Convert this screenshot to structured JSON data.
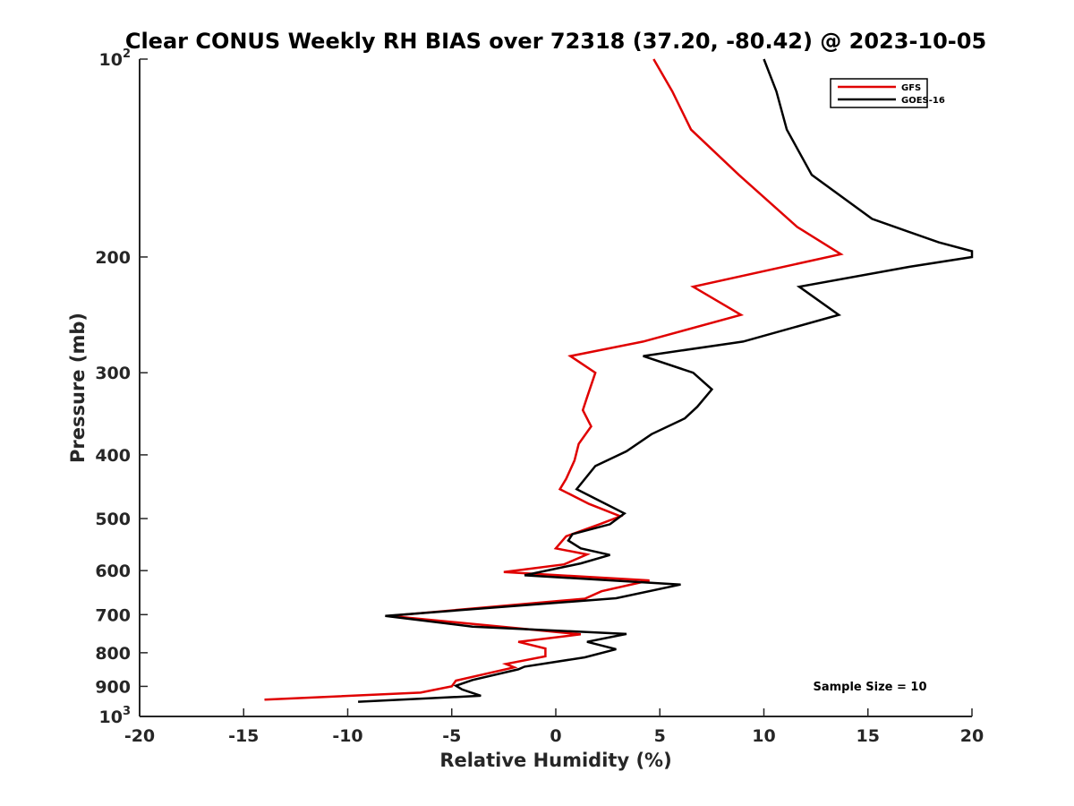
{
  "chart_data": {
    "type": "line",
    "title": "Clear CONUS Weekly RH BIAS over 72318 (37.20, -80.42) @ 2023-10-05",
    "xlabel": "Relative Humidity (%)",
    "ylabel": "Pressure (mb)",
    "xlim": [
      -20,
      20
    ],
    "ylim": [
      100,
      1000
    ],
    "yscale": "log",
    "y_reversed": true,
    "grid": false,
    "legend_position": "top-right",
    "x_ticks": [
      -20,
      -15,
      -10,
      -5,
      0,
      5,
      10,
      15,
      20
    ],
    "x_tick_labels": [
      "-20",
      "-15",
      "-10",
      "-5",
      "0",
      "5",
      "10",
      "15",
      "20"
    ],
    "y_ticks": [
      100,
      200,
      300,
      400,
      500,
      600,
      700,
      800,
      900,
      1000
    ],
    "y_tick_labels": [
      "10^2",
      "200",
      "300",
      "400",
      "500",
      "600",
      "700",
      "800",
      "900",
      "10^3"
    ],
    "annotation": "Sample Size = 10",
    "series": [
      {
        "name": "GFS",
        "color": "#e00000",
        "points": [
          [
            4.7,
            100
          ],
          [
            5.6,
            112
          ],
          [
            6.5,
            128
          ],
          [
            8.8,
            150
          ],
          [
            11.6,
            180
          ],
          [
            13.7,
            198
          ],
          [
            6.6,
            222
          ],
          [
            8.9,
            245
          ],
          [
            4.2,
            269
          ],
          [
            0.7,
            283
          ],
          [
            1.9,
            300
          ],
          [
            1.5,
            327
          ],
          [
            1.3,
            342
          ],
          [
            1.7,
            362
          ],
          [
            1.1,
            385
          ],
          [
            0.9,
            408
          ],
          [
            0.5,
            435
          ],
          [
            0.2,
            451
          ],
          [
            1.6,
            475
          ],
          [
            3.1,
            496
          ],
          [
            2.1,
            510
          ],
          [
            0.5,
            532
          ],
          [
            0.0,
            555
          ],
          [
            1.5,
            567
          ],
          [
            0.4,
            587
          ],
          [
            -2.5,
            603
          ],
          [
            4.5,
            621
          ],
          [
            2.2,
            645
          ],
          [
            1.4,
            662
          ],
          [
            -8.0,
            703
          ],
          [
            1.2,
            750
          ],
          [
            -1.8,
            770
          ],
          [
            -0.5,
            788
          ],
          [
            -0.5,
            810
          ],
          [
            -2.4,
            832
          ],
          [
            -2.0,
            842
          ],
          [
            -4.8,
            882
          ],
          [
            -5.0,
            900
          ],
          [
            -6.5,
            920
          ],
          [
            -14.0,
            943
          ]
        ]
      },
      {
        "name": "GOES-16",
        "color": "#000000",
        "points": [
          [
            10.0,
            100
          ],
          [
            10.6,
            112
          ],
          [
            11.1,
            128
          ],
          [
            12.3,
            150
          ],
          [
            15.2,
            175
          ],
          [
            18.4,
            190
          ],
          [
            20.0,
            196
          ],
          [
            20.0,
            200
          ],
          [
            17.0,
            207
          ],
          [
            11.7,
            222
          ],
          [
            13.6,
            245
          ],
          [
            9.0,
            269
          ],
          [
            4.2,
            283
          ],
          [
            6.6,
            300
          ],
          [
            7.5,
            318
          ],
          [
            6.8,
            338
          ],
          [
            6.2,
            352
          ],
          [
            4.6,
            372
          ],
          [
            3.4,
            395
          ],
          [
            1.9,
            416
          ],
          [
            1.0,
            451
          ],
          [
            2.0,
            468
          ],
          [
            3.3,
            491
          ],
          [
            2.6,
            510
          ],
          [
            0.8,
            528
          ],
          [
            0.6,
            540
          ],
          [
            1.2,
            555
          ],
          [
            2.6,
            568
          ],
          [
            1.2,
            585
          ],
          [
            -1.5,
            610
          ],
          [
            6.0,
            630
          ],
          [
            2.9,
            661
          ],
          [
            -8.2,
            703
          ],
          [
            -4.0,
            730
          ],
          [
            3.4,
            749
          ],
          [
            1.5,
            770
          ],
          [
            2.9,
            790
          ],
          [
            1.4,
            813
          ],
          [
            -1.5,
            840
          ],
          [
            -1.8,
            848
          ],
          [
            -4.0,
            880
          ],
          [
            -4.8,
            898
          ],
          [
            -4.5,
            910
          ],
          [
            -3.6,
            930
          ],
          [
            -9.5,
            950
          ]
        ]
      }
    ]
  }
}
